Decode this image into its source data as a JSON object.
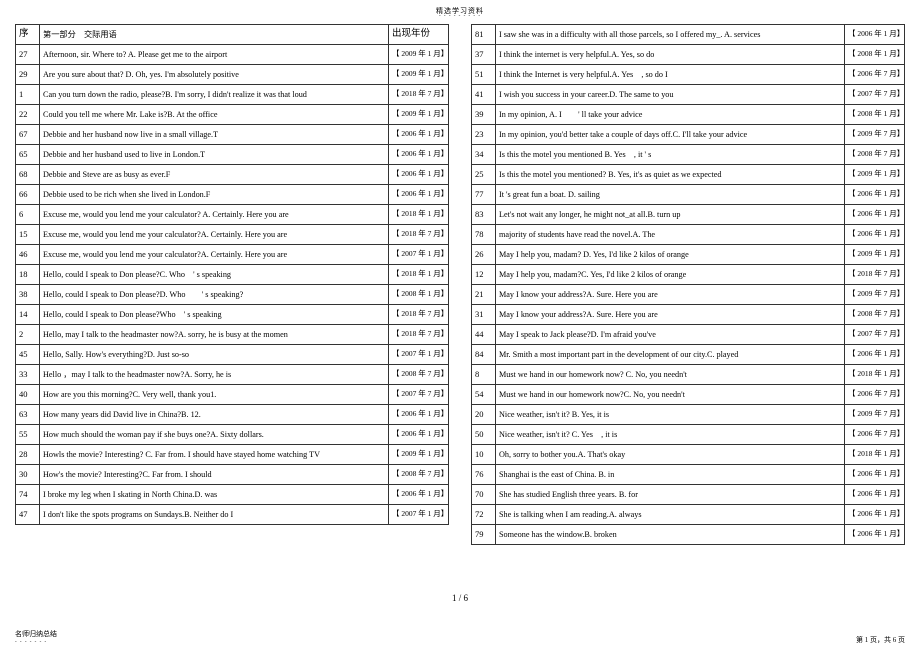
{
  "header": "精选学习资料",
  "header_dots": "- - - - - - - - -",
  "page_number": "1 / 6",
  "footer_left": "名师归纳总结",
  "footer_left_dots": "- - - - - - -",
  "footer_right": "第 1 页，共 6 页",
  "left_header": {
    "num": "序",
    "q": "第一部分　交际用语",
    "year": "出现年份"
  },
  "left": [
    {
      "num": "27",
      "q": "Afternoon, sir. Where to? A. Please get me to the airport",
      "year": "【 2009 年 1 月】",
      "big": false
    },
    {
      "num": "29",
      "q": "Are you sure about that?  D. Oh, yes. I'm absolutely positive",
      "year": "【 2009 年 1 月】",
      "big": false
    },
    {
      "num": "1",
      "q": "Can you turn down the radio, please?B. I'm sorry, I didn't realize it was that loud",
      "year": "【 2018 年 7 月】",
      "big": false
    },
    {
      "num": "22",
      "q": "Could you tell me where Mr. Lake is?B. At the office",
      "year": "【 2009 年 1 月】",
      "big": false
    },
    {
      "num": "67",
      "q": "Debbie and her husband now live in a small village.T",
      "year": "【 2006 年 1 月】",
      "big": false
    },
    {
      "num": "65",
      "q": "Debbie and her husband used to live in London.T",
      "year": "【 2006 年 1 月】",
      "big": false
    },
    {
      "num": "68",
      "q": "Debbie and Steve are as busy as ever.F",
      "year": "【 2006 年 1 月】",
      "big": false
    },
    {
      "num": "66",
      "q": "Debbie used to be rich when she lived in London.F",
      "year": "【 2006 年 1 月】",
      "big": false
    },
    {
      "num": "6",
      "q": "Excuse me, would you lend me your calculator?  A. Certainly. Here you are",
      "year": "【 2018 年 1 月】",
      "big": false
    },
    {
      "num": "15",
      "q": "Excuse me, would you lend me your calculator?A. Certainly. Here you are",
      "year": "【 2018 年 7 月】",
      "big": false
    },
    {
      "num": "46",
      "q": "Excuse me, would you lend me your calculator?A. Certainly. Here you are",
      "year": "【 2007 年 1 月】",
      "big": false
    },
    {
      "num": "18",
      "q": "Hello, could I speak to Don please?C. Who　' s speaking",
      "year": "【 2018 年 1 月】",
      "big": false
    },
    {
      "num": "38",
      "q": "Hello, could I speak to Don please?D. Who　　' s speaking?",
      "year": "【 2008 年 1 月】",
      "big": true
    },
    {
      "num": "14",
      "q": "Hello, could I speak to Don please?Who　' s speaking",
      "year": "【 2018 年 7 月】",
      "big": false
    },
    {
      "num": "2",
      "q": "Hello, may I talk to the headmaster now?A. sorry, he is busy at the momen",
      "year": "【 2018 年 7 月】",
      "big": false
    },
    {
      "num": "45",
      "q": "Hello, Sally. How's everything?D. Just so-so",
      "year": "【 2007 年 1 月】",
      "big": false
    },
    {
      "num": "33",
      "q": "Hello ，may I talk to the headmaster now?A. Sorry, he is",
      "year": "【 2008 年 7 月】",
      "big": false
    },
    {
      "num": "40",
      "q": "How are you this morning?C. Very well, thank you1.",
      "year": "【 2007 年 7 月】",
      "big": false
    },
    {
      "num": "63",
      "q": "How many years did David live in China?B. 12.",
      "year": "【 2006 年 1 月】",
      "big": false
    },
    {
      "num": "55",
      "q": "How much should  the woman pay if  she buys one?A. Sixty dollars.",
      "year": "【 2006 年 1 月】",
      "big": false
    },
    {
      "num": "28",
      "q": "Howls the movie? Interesting? C. Far from. I should have stayed home watching TV",
      "year": "【 2009 年 1 月】",
      "big": false
    },
    {
      "num": "30",
      "q": "How's the movie? Interesting?C. Far from. I should",
      "year": "【 2008 年 7 月】",
      "big": false
    },
    {
      "num": "74",
      "q": "I broke my leg when I  skating in North China.D. was",
      "year": "【 2006 年 1 月】",
      "big": false
    },
    {
      "num": "47",
      "q": "I don't like the spots programs on Sundays.B. Neither do I",
      "year": "【 2007 年 1 月】",
      "big": false
    }
  ],
  "right": [
    {
      "num": "81",
      "q": "I saw she was in a difficulty with all those parcels, so I offered my_. A. services",
      "year": "【 2006 年 1 月】",
      "big": false
    },
    {
      "num": "37",
      "q": "I think the internet is very helpful.A. Yes, so do",
      "year": "【 2008 年 1 月】",
      "big": true
    },
    {
      "num": "51",
      "q": "I think the Internet is very helpful.A. Yes　, so do I",
      "year": "【 2006 年 7 月】",
      "big": false
    },
    {
      "num": "41",
      "q": "I wish you success in your career.D. The same to you",
      "year": "【 2007 年 7 月】",
      "big": false
    },
    {
      "num": "39",
      "q": "In my opinion, A. I　　' ll take your advice",
      "year": "【 2008 年 1 月】",
      "big": true
    },
    {
      "num": "23",
      "q": "In my opinion, you'd better take a couple of days off.C. I'll take your advice",
      "year": "【 2009 年 7 月】",
      "big": false
    },
    {
      "num": "34",
      "q": "Is this the motel you mentioned B. Yes　, it ' s",
      "year": "【 2008 年 7 月】",
      "big": false
    },
    {
      "num": "25",
      "q": "Is this the motel you mentioned? B. Yes, it's as quiet as we expected",
      "year": "【 2009 年 1 月】",
      "big": false
    },
    {
      "num": "77",
      "q": "It 's great fun a boat. D. sailing",
      "year": "【 2006 年 1 月】",
      "big": false
    },
    {
      "num": "83",
      "q": "Let's not wait any longer, he might not_at all.B.  turn up",
      "year": "【 2006 年 1 月】",
      "big": false
    },
    {
      "num": "78",
      "q": "majority of students have read the novel.A. The",
      "year": "【 2006 年 1 月】",
      "big": false
    },
    {
      "num": "26",
      "q": "May I help you, madam? D. Yes, I'd like 2 kilos of orange",
      "year": "【 2009 年 1 月】",
      "big": false
    },
    {
      "num": "12",
      "q": "May I help you, madam?C. Yes, I'd like 2 kilos of orange",
      "year": "【 2018 年 7 月】",
      "big": false
    },
    {
      "num": "21",
      "q": "May I know your address?A. Sure. Here you are",
      "year": "【 2009 年 7 月】",
      "big": false
    },
    {
      "num": "31",
      "q": "May I know your address?A. Sure. Here you are",
      "year": "【 2008 年 7 月】",
      "big": false
    },
    {
      "num": "44",
      "q": "May I speak to Jack please?D. I'm afraid you've",
      "year": "【 2007 年 7 月】",
      "big": false
    },
    {
      "num": "84",
      "q": "Mr. Smith a most important part in the development of our city.C. played",
      "year": "【 2006 年 1 月】",
      "big": false
    },
    {
      "num": "8",
      "q": "Must we hand in our homework now? C. No, you needn't",
      "year": "【 2018 年 1 月】",
      "big": false
    },
    {
      "num": "54",
      "q": "Must we hand in our homework now?C. No, you needn't",
      "year": "【 2006 年 7 月】",
      "big": false
    },
    {
      "num": "20",
      "q": "Nice weather, isn't it?  B. Yes, it is",
      "year": "【 2009 年 7 月】",
      "big": false
    },
    {
      "num": "50",
      "q": "Nice weather, isn't it?  C. Yes　, it is",
      "year": "【 2006 年 7 月】",
      "big": false
    },
    {
      "num": "10",
      "q": "Oh, sorry to bother you.A. That's okay",
      "year": "【 2018 年 1 月】",
      "big": false
    },
    {
      "num": "76",
      "q": "Shanghai is the east of China.  B. in",
      "year": "【 2006 年 1 月】",
      "big": false
    },
    {
      "num": "70",
      "q": "She has studied English three years.  B. for",
      "year": "【 2006 年 1 月】",
      "big": false
    },
    {
      "num": "72",
      "q": "She is  talking when I am reading.A. always",
      "year": "【 2006 年 1 月】",
      "big": false
    },
    {
      "num": "79",
      "q": "Someone has the window.B. broken",
      "year": "【 2006 年 1 月】",
      "big": false
    }
  ]
}
